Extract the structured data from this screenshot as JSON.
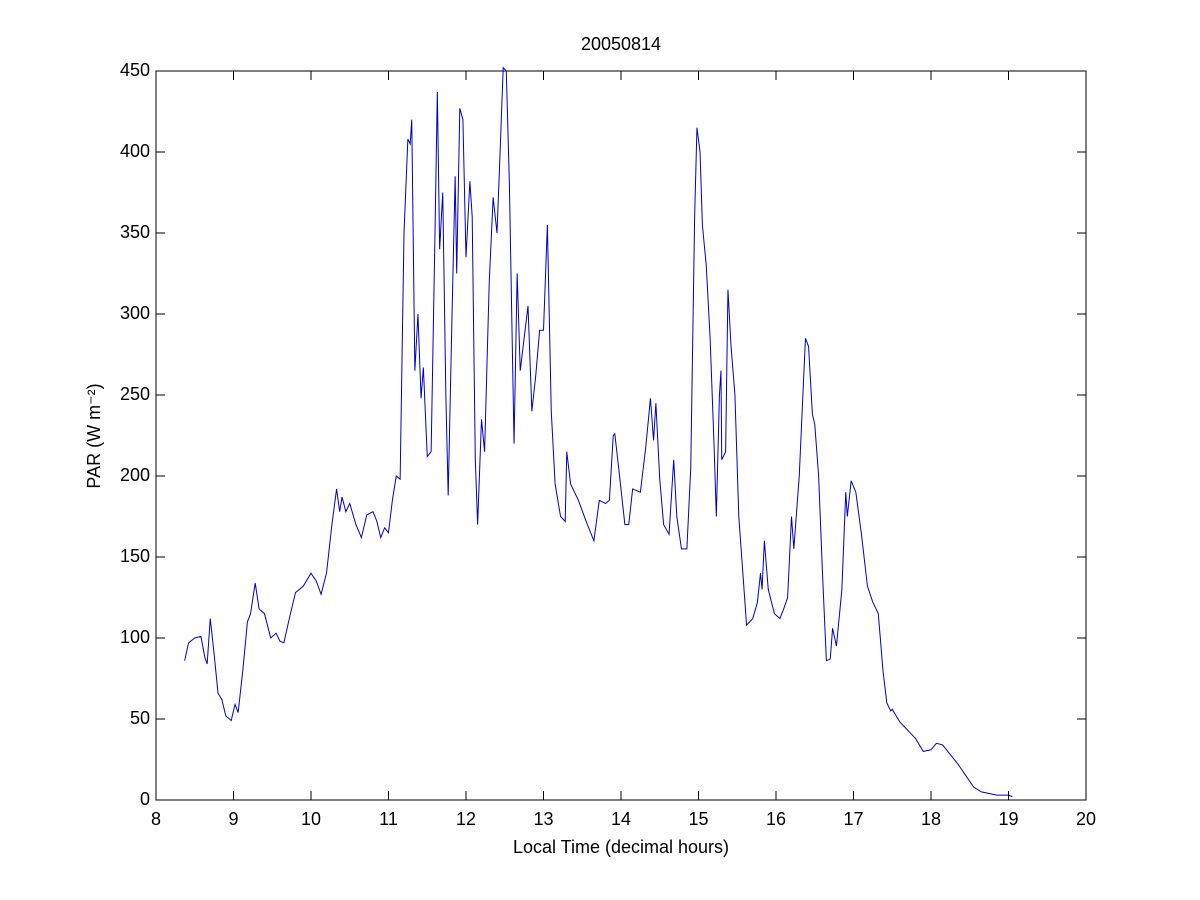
{
  "chart_data": {
    "type": "line",
    "title": "20050814",
    "xlabel": "Local Time (decimal hours)",
    "ylabel": "PAR (W m⁻²)",
    "xlim": [
      8,
      20
    ],
    "ylim": [
      0,
      450
    ],
    "xticks": [
      8,
      9,
      10,
      11,
      12,
      13,
      14,
      15,
      16,
      17,
      18,
      19,
      20
    ],
    "yticks": [
      0,
      50,
      100,
      150,
      200,
      250,
      300,
      350,
      400,
      450
    ],
    "grid": false,
    "series": [
      {
        "color": "#0000cc",
        "x": [
          8.37,
          8.42,
          8.5,
          8.58,
          8.63,
          8.66,
          8.7,
          8.75,
          8.8,
          8.85,
          8.9,
          8.97,
          9.02,
          9.06,
          9.12,
          9.18,
          9.22,
          9.28,
          9.33,
          9.4,
          9.48,
          9.55,
          9.6,
          9.65,
          9.72,
          9.8,
          9.9,
          10.0,
          10.07,
          10.13,
          10.2,
          10.27,
          10.33,
          10.37,
          10.4,
          10.45,
          10.5,
          10.58,
          10.65,
          10.72,
          10.8,
          10.85,
          10.9,
          10.95,
          11.0,
          11.05,
          11.1,
          11.15,
          11.2,
          11.25,
          11.28,
          11.3,
          11.34,
          11.38,
          11.42,
          11.45,
          11.5,
          11.55,
          11.6,
          11.63,
          11.66,
          11.7,
          11.74,
          11.77,
          11.82,
          11.86,
          11.88,
          11.92,
          11.96,
          12.0,
          12.05,
          12.08,
          12.12,
          12.15,
          12.2,
          12.24,
          12.3,
          12.35,
          12.4,
          12.44,
          12.48,
          12.52,
          12.56,
          12.62,
          12.66,
          12.7,
          12.75,
          12.8,
          12.85,
          12.9,
          12.95,
          13.0,
          13.05,
          13.1,
          13.15,
          13.22,
          13.28,
          13.3,
          13.35,
          13.45,
          13.55,
          13.65,
          13.72,
          13.8,
          13.85,
          13.9,
          13.92,
          13.97,
          14.05,
          14.1,
          14.15,
          14.25,
          14.32,
          14.38,
          14.42,
          14.45,
          14.5,
          14.55,
          14.62,
          14.68,
          14.72,
          14.78,
          14.85,
          14.9,
          14.95,
          14.98,
          15.02,
          15.05,
          15.1,
          15.15,
          15.2,
          15.23,
          15.27,
          15.29,
          15.3,
          15.35,
          15.38,
          15.42,
          15.47,
          15.52,
          15.58,
          15.62,
          15.7,
          15.76,
          15.8,
          15.82,
          15.85,
          15.9,
          15.98,
          16.05,
          16.1,
          16.15,
          16.2,
          16.23,
          16.3,
          16.38,
          16.42,
          16.47,
          16.5,
          16.55,
          16.6,
          16.65,
          16.7,
          16.73,
          16.78,
          16.85,
          16.9,
          16.92,
          16.97,
          17.03,
          17.1,
          17.18,
          17.25,
          17.32,
          17.38,
          17.43,
          17.48,
          17.5,
          17.6,
          17.7,
          17.8,
          17.9,
          18.0,
          18.07,
          18.15,
          18.25,
          18.35,
          18.45,
          18.55,
          18.65,
          18.75,
          18.85,
          19.0,
          19.05
        ],
        "values": [
          86,
          97,
          100,
          101,
          88,
          84,
          112,
          90,
          66,
          62,
          52,
          49,
          59,
          54,
          80,
          110,
          115,
          134,
          118,
          115,
          100,
          103,
          98,
          97,
          112,
          128,
          132,
          140,
          135,
          127,
          140,
          170,
          192,
          178,
          187,
          178,
          183,
          170,
          162,
          176,
          178,
          172,
          162,
          168,
          165,
          185,
          200,
          198,
          350,
          408,
          405,
          420,
          265,
          300,
          248,
          267,
          212,
          215,
          350,
          437,
          340,
          375,
          250,
          188,
          300,
          385,
          325,
          427,
          420,
          335,
          382,
          360,
          210,
          170,
          235,
          215,
          320,
          372,
          350,
          400,
          452,
          450,
          380,
          220,
          325,
          265,
          285,
          305,
          240,
          262,
          290,
          290,
          355,
          240,
          195,
          175,
          172,
          215,
          195,
          185,
          172,
          160,
          185,
          183,
          185,
          225,
          226,
          205,
          170,
          170,
          192,
          190,
          218,
          248,
          222,
          245,
          198,
          170,
          164,
          210,
          175,
          155,
          155,
          205,
          360,
          415,
          400,
          355,
          330,
          285,
          220,
          175,
          250,
          265,
          210,
          215,
          315,
          280,
          250,
          175,
          135,
          108,
          112,
          122,
          140,
          130,
          160,
          130,
          115,
          112,
          118,
          125,
          175,
          155,
          200,
          285,
          280,
          238,
          232,
          200,
          140,
          86,
          87,
          106,
          95,
          130,
          190,
          175,
          197,
          190,
          165,
          132,
          122,
          115,
          80,
          60,
          55,
          56,
          48,
          43,
          38,
          30,
          31,
          35,
          34,
          28,
          22,
          15,
          8,
          5,
          4,
          3,
          3,
          2
        ]
      }
    ]
  }
}
